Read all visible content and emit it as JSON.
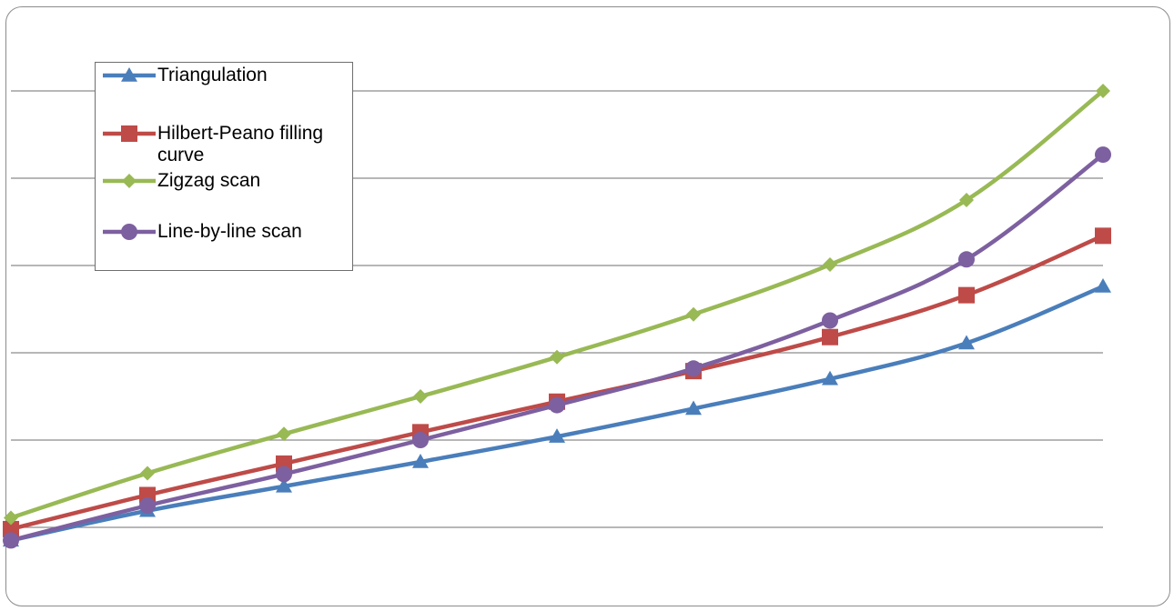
{
  "chart_data": {
    "type": "line",
    "title": "",
    "xlabel": "",
    "ylabel": "",
    "ylim": [
      0,
      6
    ],
    "grid": true,
    "legend_position": "top-left",
    "x": [
      1,
      2,
      3,
      4,
      5,
      6,
      7,
      8,
      9
    ],
    "series": [
      {
        "name": "Triangulation",
        "color": "#4a7ebb",
        "marker": "triangle",
        "values": [
          0.85,
          1.19,
          1.47,
          1.75,
          2.04,
          2.36,
          2.7,
          3.11,
          3.76
        ]
      },
      {
        "name": "Hilbert-Peano filling curve",
        "color": "#be4b48",
        "marker": "square",
        "values": [
          0.98,
          1.37,
          1.73,
          2.09,
          2.44,
          2.79,
          3.18,
          3.66,
          4.34
        ]
      },
      {
        "name": "Zigzag scan",
        "color": "#98b954",
        "marker": "diamond",
        "values": [
          1.11,
          1.62,
          2.07,
          2.5,
          2.95,
          3.44,
          4.01,
          4.75,
          6.0
        ]
      },
      {
        "name": "Line-by-line scan",
        "color": "#7d60a0",
        "marker": "circle",
        "values": [
          0.85,
          1.25,
          1.61,
          2.0,
          2.4,
          2.82,
          3.37,
          4.07,
          5.27
        ]
      }
    ]
  }
}
